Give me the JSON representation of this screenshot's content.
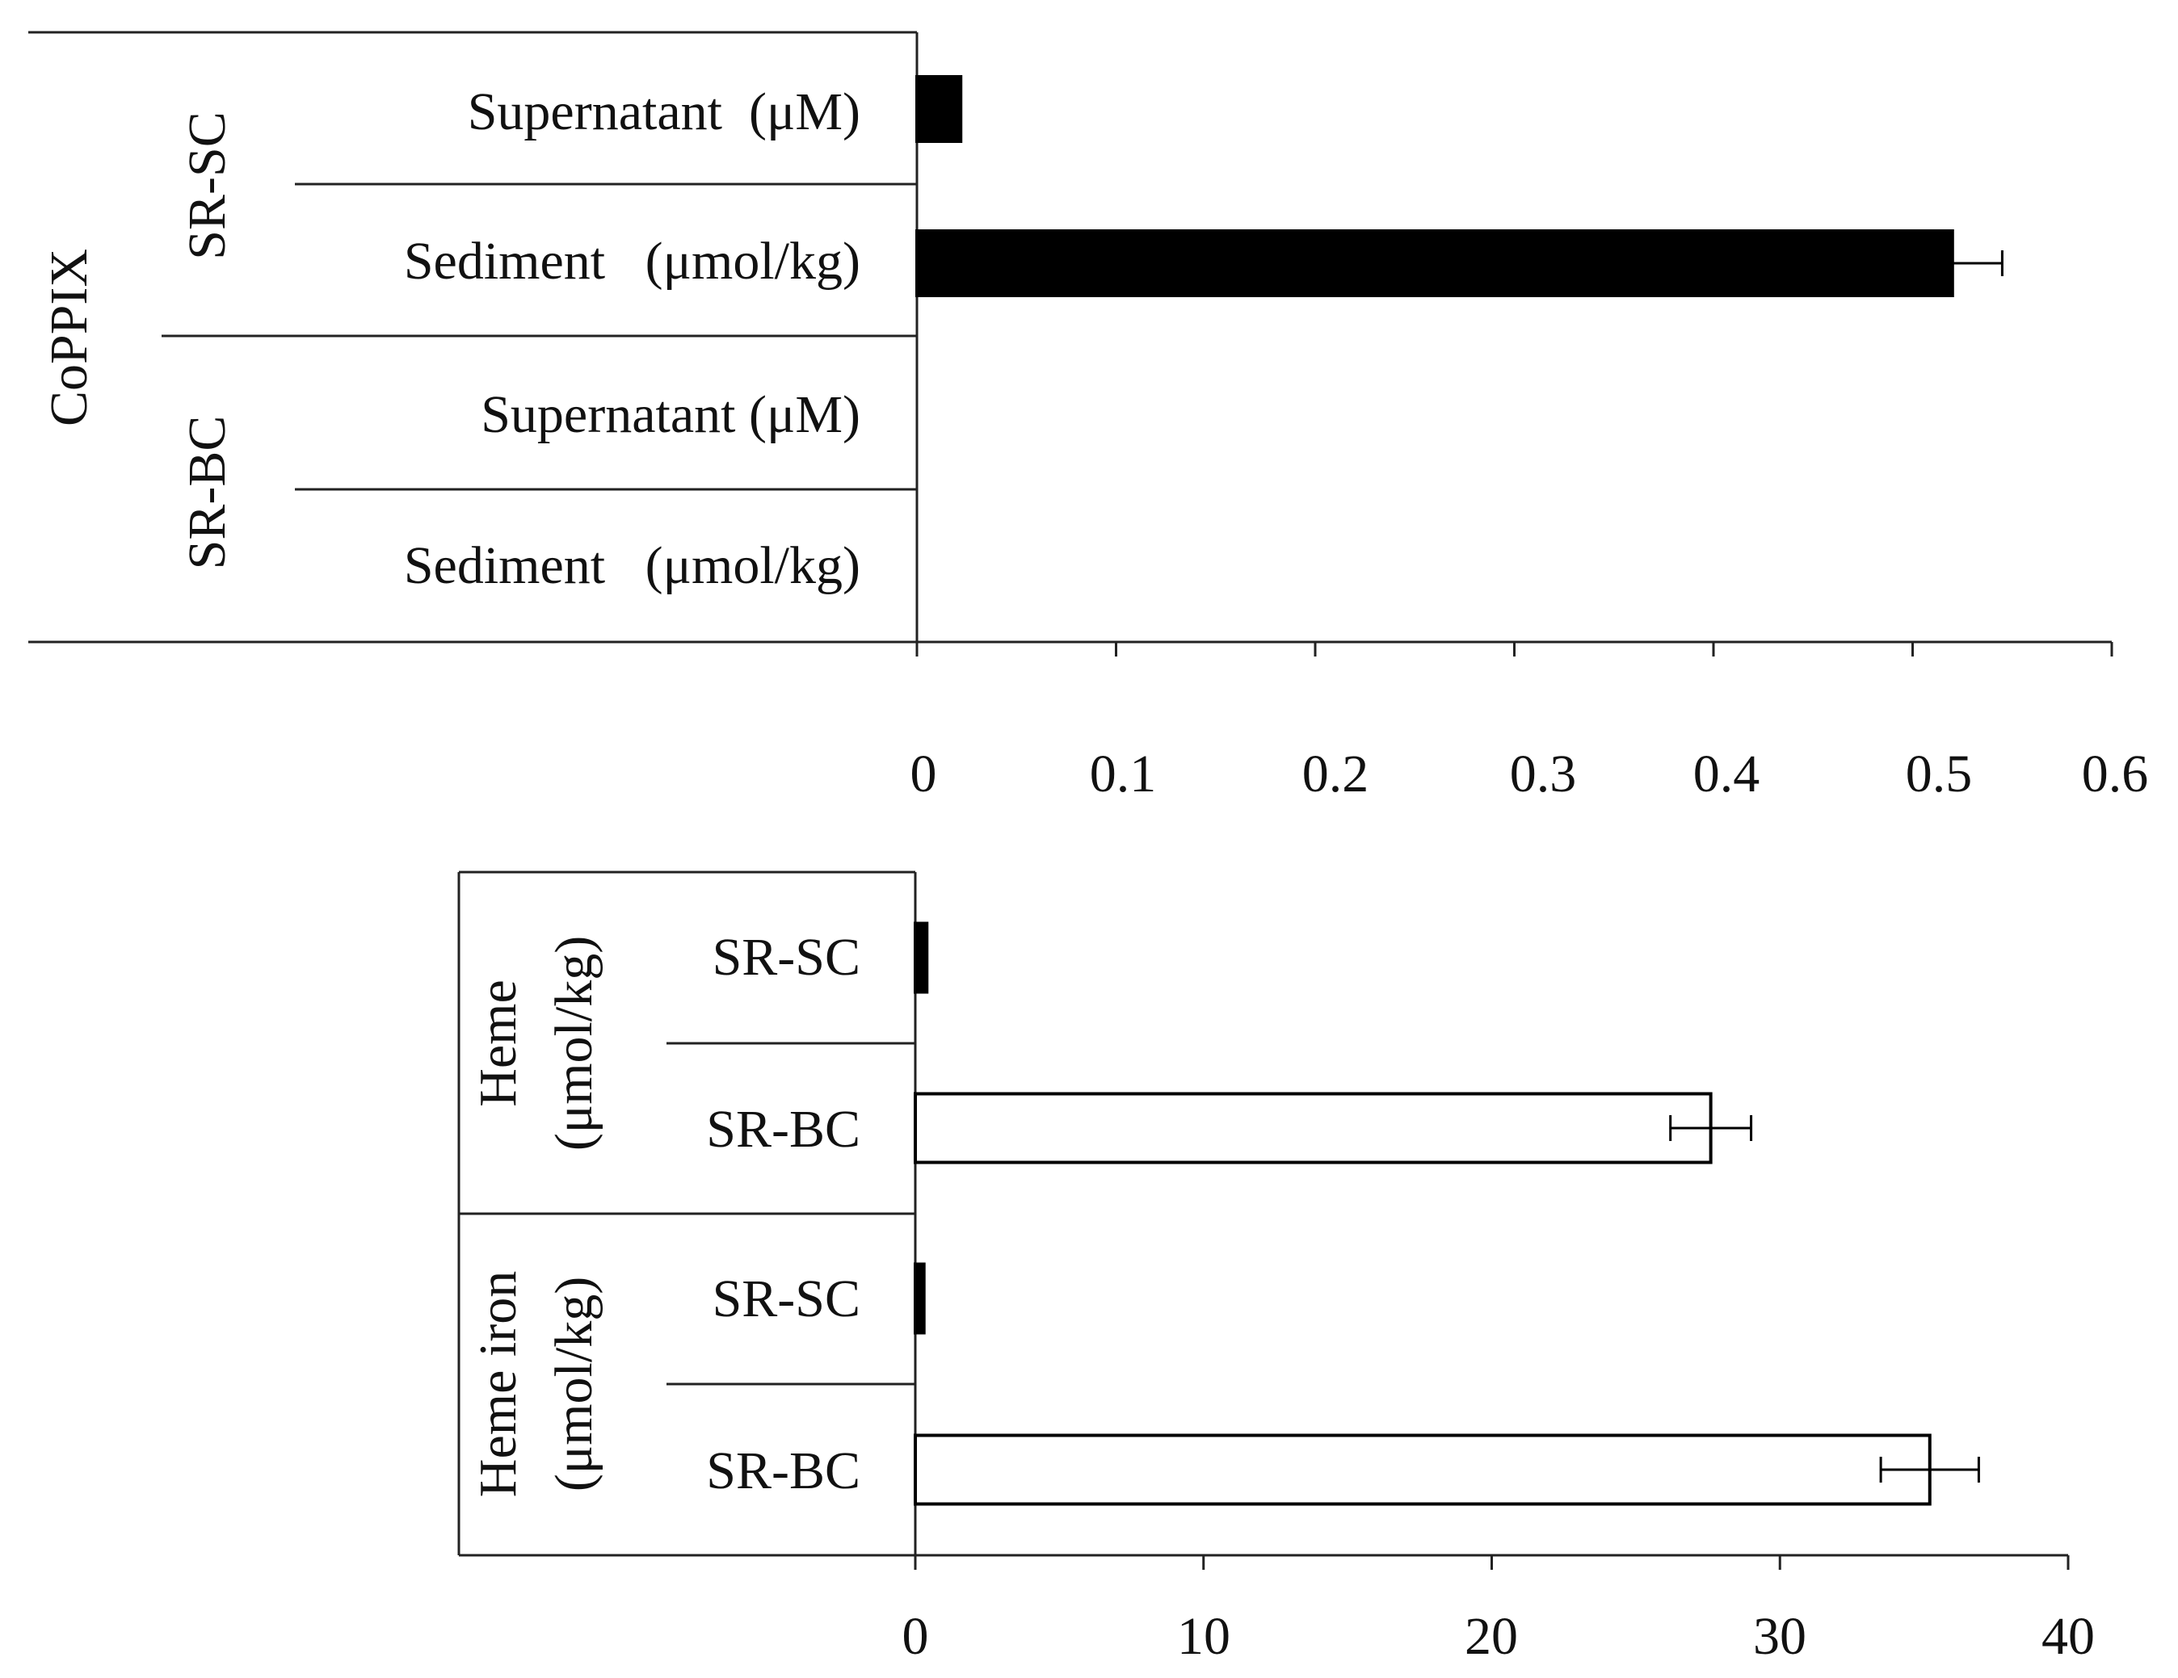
{
  "chart_data": [
    {
      "type": "bar",
      "orientation": "horizontal",
      "group_label": "CoPPIX",
      "subgroups": [
        "SR-SC",
        "SR-BC"
      ],
      "categories": [
        {
          "subgroup": "SR-SC",
          "label": "Supernatant  (μM)",
          "value": 0.022,
          "error": null,
          "fill": "#000000"
        },
        {
          "subgroup": "SR-SC",
          "label": "Sediment   (μmol/kg)",
          "value": 0.52,
          "error": 0.025,
          "fill": "#000000"
        },
        {
          "subgroup": "SR-BC",
          "label": "Supernatant (μM)",
          "value": 0,
          "error": null,
          "fill": "#000000"
        },
        {
          "subgroup": "SR-BC",
          "label": "Sediment   (μmol/kg)",
          "value": 0,
          "error": null,
          "fill": "#000000"
        }
      ],
      "xlim": [
        0,
        0.6
      ],
      "xticks": [
        "0",
        "0.1",
        "0.2",
        "0.3",
        "0.4",
        "0.5",
        "0.6"
      ],
      "xlabel": "",
      "ylabel": "",
      "title": ""
    },
    {
      "type": "bar",
      "orientation": "horizontal",
      "groups": [
        {
          "label_line1": "Heme",
          "label_line2": "(μmol/kg)"
        },
        {
          "label_line1": "Heme iron",
          "label_line2": "(μmol/kg)"
        }
      ],
      "categories": [
        {
          "group": 0,
          "label": "SR-SC",
          "value": 0.4,
          "error": null,
          "fill": "#000000"
        },
        {
          "group": 0,
          "label": "SR-BC",
          "value": 27.6,
          "error": 1.4,
          "fill": "#ffffff"
        },
        {
          "group": 1,
          "label": "SR-SC",
          "value": 0.3,
          "error": null,
          "fill": "#000000"
        },
        {
          "group": 1,
          "label": "SR-BC",
          "value": 35.2,
          "error": 1.7,
          "fill": "#ffffff"
        }
      ],
      "xlim": [
        0,
        40
      ],
      "xticks": [
        "0",
        "10",
        "20",
        "30",
        "40"
      ],
      "xlabel": "",
      "ylabel": "",
      "title": ""
    }
  ]
}
